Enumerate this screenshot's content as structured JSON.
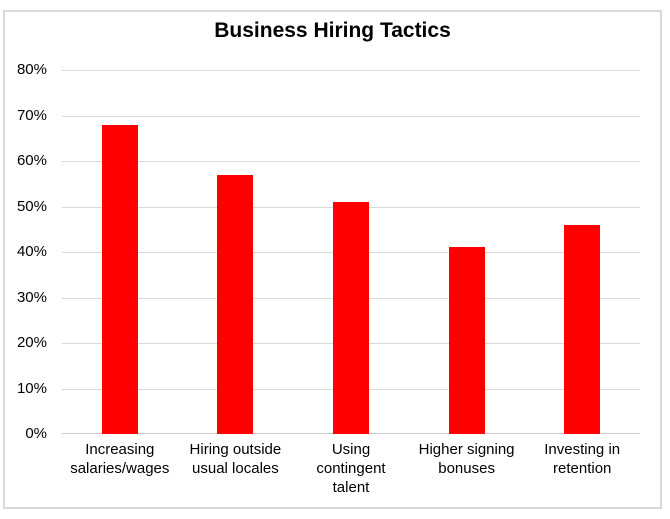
{
  "chart_data": {
    "type": "bar",
    "title": "Business Hiring Tactics",
    "categories": [
      "Increasing salaries/wages",
      "Hiring outside usual locales",
      "Using contingent talent",
      "Higher signing bonuses",
      "Investing in retention"
    ],
    "categories_wrapped": [
      "Increasing\nsalaries/wages",
      "Hiring outside\nusual locales",
      "Using\ncontingent\ntalent",
      "Higher signing\nbonuses",
      "Investing in\nretention"
    ],
    "values": [
      68,
      57,
      51,
      41,
      46
    ],
    "unit": "%",
    "xlabel": "",
    "ylabel": "",
    "ylim": [
      0,
      80
    ],
    "ytick_step": 10,
    "ytick_labels": [
      "0%",
      "10%",
      "20%",
      "30%",
      "40%",
      "50%",
      "60%",
      "70%",
      "80%"
    ],
    "grid": true,
    "legend": "none",
    "colors": {
      "bar": "#FF0000",
      "gridline": "#D9D9D9",
      "axis_line": "#C9C9C9",
      "border": "#D9D9D9",
      "text": "#000000",
      "background": "#FFFFFF"
    }
  }
}
